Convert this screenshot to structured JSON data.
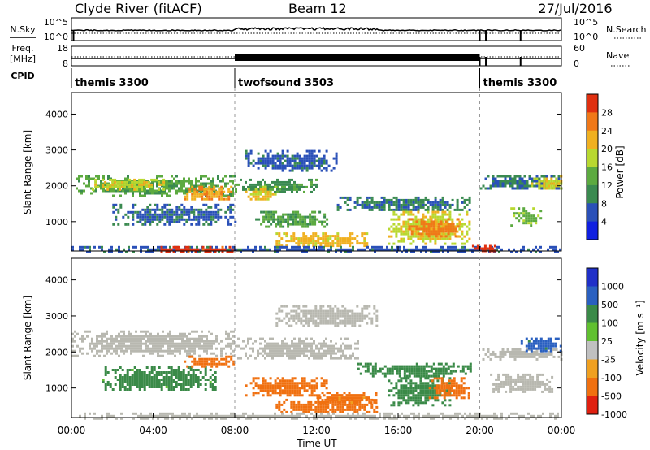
{
  "header": {
    "station": "Clyde River (fitACF)",
    "beam": "Beam 12",
    "date": "27/Jul/2016"
  },
  "nsky_panel": {
    "left_label": "N.Sky",
    "right_label": "N.Search",
    "left_ticks": [
      "10^5",
      "10^0"
    ],
    "right_ticks": [
      "10^5",
      "10^0"
    ]
  },
  "freq_panel": {
    "left_label_1": "Freq.",
    "left_label_2": "[MHz]",
    "right_label": "Nave",
    "left_ticks": [
      "18",
      "8"
    ],
    "right_ticks": [
      "60",
      "0"
    ]
  },
  "cpid": {
    "label": "CPID",
    "segments": [
      {
        "name": "themis 3300",
        "start_hour": 0,
        "end_hour": 8
      },
      {
        "name": "twofsound 3503",
        "start_hour": 8,
        "end_hour": 20
      },
      {
        "name": "themis 3300",
        "start_hour": 20,
        "end_hour": 24
      }
    ]
  },
  "power_panel": {
    "ylabel": "Slant Range [km]",
    "yticks": [
      "1000",
      "2000",
      "3000",
      "4000"
    ],
    "colorbar_label": "Power [dB]",
    "colorbar_ticks": [
      "4",
      "8",
      "12",
      "16",
      "20",
      "24",
      "28"
    ],
    "colors": [
      "#1020e0",
      "#2a50b8",
      "#3a8a50",
      "#5caa40",
      "#b8d830",
      "#f0b020",
      "#f07818",
      "#e03010"
    ]
  },
  "velocity_panel": {
    "ylabel": "Slant Range [km]",
    "yticks": [
      "1000",
      "2000",
      "3000",
      "4000"
    ],
    "colorbar_label": "Velocity [m s⁻¹]",
    "colorbar_ticks": [
      "1000",
      "500",
      "100",
      "25",
      "-25",
      "-100",
      "-500",
      "-1000"
    ],
    "colors": [
      "#2030c8",
      "#2a60c0",
      "#3a8a48",
      "#60c030",
      "#c0c0c0",
      "#f0a020",
      "#f07010",
      "#e02010"
    ],
    "ground_scatter_color": "#b8b8b0"
  },
  "x_axis": {
    "label": "Time UT",
    "ticks": [
      "00:00",
      "04:00",
      "08:00",
      "12:00",
      "16:00",
      "20:00",
      "00:00"
    ]
  },
  "chart_data": {
    "type": "heatmap",
    "title": "Clyde River (fitACF)  Beam 12  27/Jul/2016",
    "xlabel": "Time UT",
    "ylabel": "Slant Range [km]",
    "xlim_hours": [
      0,
      24
    ],
    "ylim_km": [
      180,
      4600
    ],
    "panels": [
      {
        "name": "Power",
        "unit": "dB",
        "color_range": [
          0,
          30
        ],
        "regions": [
          {
            "t0": 0.2,
            "t1": 8.0,
            "r0": 1750,
            "r1": 2300,
            "v": 12
          },
          {
            "t0": 1.0,
            "t1": 4.5,
            "r0": 1900,
            "r1": 2200,
            "v": 18
          },
          {
            "t0": 5.5,
            "t1": 7.8,
            "r0": 1600,
            "r1": 2000,
            "v": 22
          },
          {
            "t0": 2.0,
            "t1": 8.0,
            "r0": 950,
            "r1": 1500,
            "v": 7
          },
          {
            "t0": 8.0,
            "t1": 12.0,
            "r0": 1800,
            "r1": 2200,
            "v": 10
          },
          {
            "t0": 8.5,
            "t1": 10.0,
            "r0": 1600,
            "r1": 2000,
            "v": 18
          },
          {
            "t0": 8.5,
            "t1": 13.0,
            "r0": 2400,
            "r1": 3000,
            "v": 6
          },
          {
            "t0": 9.0,
            "t1": 12.5,
            "r0": 850,
            "r1": 1300,
            "v": 12
          },
          {
            "t0": 10.0,
            "t1": 14.5,
            "r0": 300,
            "r1": 700,
            "v": 20
          },
          {
            "t0": 13.0,
            "t1": 19.5,
            "r0": 1300,
            "r1": 1700,
            "v": 8
          },
          {
            "t0": 15.5,
            "t1": 19.5,
            "r0": 400,
            "r1": 1300,
            "v": 18
          },
          {
            "t0": 16.5,
            "t1": 19.0,
            "r0": 600,
            "r1": 1100,
            "v": 24
          },
          {
            "t0": 20.0,
            "t1": 24.0,
            "r0": 1900,
            "r1": 2300,
            "v": 8
          },
          {
            "t0": 22.5,
            "t1": 24.0,
            "r0": 1900,
            "r1": 2300,
            "v": 18
          },
          {
            "t0": 21.5,
            "t1": 23.0,
            "r0": 900,
            "r1": 1400,
            "v": 14
          },
          {
            "t0": 0.0,
            "t1": 24.0,
            "r0": 180,
            "r1": 320,
            "v": 6
          },
          {
            "t0": 4.0,
            "t1": 8.0,
            "r0": 180,
            "r1": 320,
            "v": 28
          },
          {
            "t0": 19.5,
            "t1": 21.0,
            "r0": 180,
            "r1": 350,
            "v": 28
          }
        ]
      },
      {
        "name": "Velocity",
        "unit": "m s-1",
        "color_range": [
          -1000,
          1000
        ],
        "regions": [
          {
            "t0": 0.0,
            "t1": 8.0,
            "r0": 1900,
            "r1": 2600,
            "v": "ground"
          },
          {
            "t0": 8.0,
            "t1": 14.0,
            "r0": 1800,
            "r1": 2400,
            "v": "ground"
          },
          {
            "t0": 10.0,
            "t1": 15.0,
            "r0": 2700,
            "r1": 3300,
            "v": "ground"
          },
          {
            "t0": 1.5,
            "t1": 7.0,
            "r0": 950,
            "r1": 1600,
            "v": 120
          },
          {
            "t0": 5.5,
            "t1": 8.0,
            "r0": 1600,
            "r1": 1900,
            "v": -150
          },
          {
            "t0": 8.5,
            "t1": 12.5,
            "r0": 800,
            "r1": 1300,
            "v": -250
          },
          {
            "t0": 10.0,
            "t1": 15.0,
            "r0": 300,
            "r1": 700,
            "v": -180
          },
          {
            "t0": 12.0,
            "t1": 15.0,
            "r0": 600,
            "r1": 900,
            "v": -120
          },
          {
            "t0": 15.5,
            "t1": 18.5,
            "r0": 500,
            "r1": 1300,
            "v": 400
          },
          {
            "t0": 17.5,
            "t1": 19.5,
            "r0": 700,
            "r1": 1300,
            "v": -400
          },
          {
            "t0": 14.0,
            "t1": 19.5,
            "r0": 1300,
            "r1": 1700,
            "v": 150
          },
          {
            "t0": 20.0,
            "t1": 24.0,
            "r0": 1800,
            "r1": 2100,
            "v": "ground"
          },
          {
            "t0": 22.0,
            "t1": 24.0,
            "r0": 2000,
            "r1": 2400,
            "v": 600
          },
          {
            "t0": 20.5,
            "t1": 23.5,
            "r0": 900,
            "r1": 1400,
            "v": "ground"
          },
          {
            "t0": 0.0,
            "t1": 24.0,
            "r0": 180,
            "r1": 320,
            "v": "ground"
          }
        ]
      }
    ],
    "nsky": {
      "ylim": [
        "10^0",
        "10^5"
      ],
      "dips_hours": [
        0.1,
        20.0,
        20.3,
        22.0
      ]
    },
    "freq": {
      "ylim_mhz": [
        8,
        18
      ],
      "twofsound_hours": [
        8,
        20
      ]
    },
    "legend": "colorbar-right",
    "grid": false
  }
}
